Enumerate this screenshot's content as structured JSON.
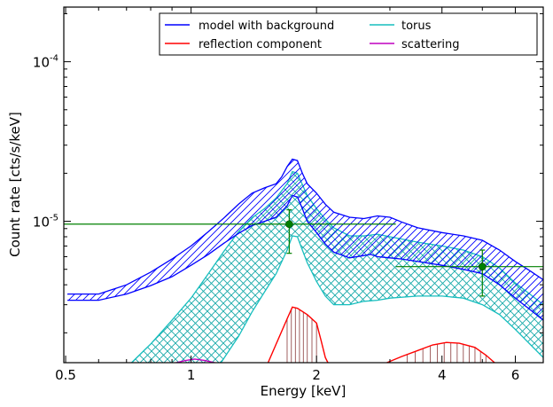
{
  "chart_data": {
    "type": "line",
    "xlabel": "Energy [keV]",
    "ylabel": "Count rate [cts/s/keV]",
    "xscale": "log",
    "yscale": "log",
    "xlim": [
      0.495,
      7.0
    ],
    "ylim": [
      1.3e-06,
      0.00022
    ],
    "xticks": [
      {
        "value": 0.5,
        "label": "0.5"
      },
      {
        "value": 1,
        "label": "1"
      },
      {
        "value": 2,
        "label": "2"
      },
      {
        "value": 4,
        "label": "4"
      },
      {
        "value": 6,
        "label": "6"
      }
    ],
    "yticks": [
      {
        "value": 1e-05,
        "base": "10",
        "exp": "-5"
      },
      {
        "value": 0.0001,
        "base": "10",
        "exp": "-4"
      }
    ],
    "legend": {
      "placement": "top-right",
      "entries": [
        {
          "key": "model",
          "label": "model with background",
          "color": "#0000ff"
        },
        {
          "key": "torus",
          "label": "torus",
          "color": "#17bebe"
        },
        {
          "key": "reflection",
          "label": "reflection component",
          "color": "#ff0000"
        },
        {
          "key": "scattering",
          "label": "scattering",
          "color": "#bf00bf"
        }
      ]
    },
    "series": [
      {
        "key": "model",
        "color": "#0000ff",
        "hatch": "diagonal",
        "upper": [
          [
            0.505,
            3.5e-06
          ],
          [
            0.6,
            3.5e-06
          ],
          [
            0.7,
            4e-06
          ],
          [
            0.8,
            4.8e-06
          ],
          [
            0.9,
            5.8e-06
          ],
          [
            1.0,
            7e-06
          ],
          [
            1.1,
            8.6e-06
          ],
          [
            1.2,
            1.05e-05
          ],
          [
            1.3,
            1.28e-05
          ],
          [
            1.4,
            1.5e-05
          ],
          [
            1.5,
            1.62e-05
          ],
          [
            1.6,
            1.72e-05
          ],
          [
            1.65,
            1.9e-05
          ],
          [
            1.7,
            2.2e-05
          ],
          [
            1.75,
            2.45e-05
          ],
          [
            1.8,
            2.4e-05
          ],
          [
            1.85,
            2e-05
          ],
          [
            1.9,
            1.72e-05
          ],
          [
            2.0,
            1.5e-05
          ],
          [
            2.1,
            1.28e-05
          ],
          [
            2.2,
            1.14e-05
          ],
          [
            2.4,
            1.06e-05
          ],
          [
            2.6,
            1.04e-05
          ],
          [
            2.8,
            1.08e-05
          ],
          [
            3.0,
            1.06e-05
          ],
          [
            3.2,
            9.9e-06
          ],
          [
            3.5,
            9.1e-06
          ],
          [
            4.0,
            8.5e-06
          ],
          [
            4.5,
            8.1e-06
          ],
          [
            5.0,
            7.6e-06
          ],
          [
            5.5,
            6.6e-06
          ],
          [
            6.0,
            5.6e-06
          ],
          [
            6.5,
            4.9e-06
          ],
          [
            7.0,
            4.3e-06
          ]
        ],
        "lower": [
          [
            0.505,
            3.2e-06
          ],
          [
            0.6,
            3.2e-06
          ],
          [
            0.7,
            3.5e-06
          ],
          [
            0.8,
            3.95e-06
          ],
          [
            0.9,
            4.5e-06
          ],
          [
            1.0,
            5.3e-06
          ],
          [
            1.1,
            6.2e-06
          ],
          [
            1.2,
            7.3e-06
          ],
          [
            1.3,
            8.4e-06
          ],
          [
            1.4,
            9.4e-06
          ],
          [
            1.5,
            1e-05
          ],
          [
            1.6,
            1.06e-05
          ],
          [
            1.7,
            1.25e-05
          ],
          [
            1.75,
            1.45e-05
          ],
          [
            1.8,
            1.42e-05
          ],
          [
            1.85,
            1.2e-05
          ],
          [
            1.9,
            1e-05
          ],
          [
            2.0,
            8.5e-06
          ],
          [
            2.1,
            7.2e-06
          ],
          [
            2.2,
            6.4e-06
          ],
          [
            2.4,
            5.9e-06
          ],
          [
            2.6,
            6.1e-06
          ],
          [
            2.7,
            6.2e-06
          ],
          [
            2.8,
            6e-06
          ],
          [
            3.0,
            5.9e-06
          ],
          [
            3.2,
            5.8e-06
          ],
          [
            3.5,
            5.6e-06
          ],
          [
            4.0,
            5.3e-06
          ],
          [
            4.5,
            5e-06
          ],
          [
            5.0,
            4.7e-06
          ],
          [
            5.5,
            4e-06
          ],
          [
            6.0,
            3.3e-06
          ],
          [
            6.5,
            2.8e-06
          ],
          [
            7.0,
            2.4e-06
          ]
        ]
      },
      {
        "key": "torus",
        "color": "#17bebe",
        "hatch": "cross",
        "upper": [
          [
            0.72,
            1.3e-06
          ],
          [
            0.8,
            1.7e-06
          ],
          [
            0.9,
            2.4e-06
          ],
          [
            1.0,
            3.3e-06
          ],
          [
            1.1,
            4.7e-06
          ],
          [
            1.2,
            6.5e-06
          ],
          [
            1.3,
            8.6e-06
          ],
          [
            1.4,
            1.05e-05
          ],
          [
            1.5,
            1.2e-05
          ],
          [
            1.6,
            1.4e-05
          ],
          [
            1.7,
            1.72e-05
          ],
          [
            1.75,
            2.05e-05
          ],
          [
            1.8,
            2e-05
          ],
          [
            1.85,
            1.7e-05
          ],
          [
            1.9,
            1.45e-05
          ],
          [
            2.0,
            1.2e-05
          ],
          [
            2.1,
            1.03e-05
          ],
          [
            2.2,
            9.1e-06
          ],
          [
            2.4,
            8.1e-06
          ],
          [
            2.6,
            8.1e-06
          ],
          [
            2.8,
            8.3e-06
          ],
          [
            3.0,
            8e-06
          ],
          [
            3.5,
            7.4e-06
          ],
          [
            4.0,
            7e-06
          ],
          [
            4.5,
            6.6e-06
          ],
          [
            5.0,
            6e-06
          ],
          [
            5.5,
            5.1e-06
          ],
          [
            6.0,
            4.1e-06
          ],
          [
            6.5,
            3.5e-06
          ],
          [
            7.0,
            3e-06
          ]
        ],
        "lower": [
          [
            1.18,
            1.3e-06
          ],
          [
            1.3,
            1.9e-06
          ],
          [
            1.4,
            2.7e-06
          ],
          [
            1.5,
            3.6e-06
          ],
          [
            1.6,
            4.7e-06
          ],
          [
            1.7,
            6.6e-06
          ],
          [
            1.75,
            8.1e-06
          ],
          [
            1.8,
            8e-06
          ],
          [
            1.85,
            6.6e-06
          ],
          [
            1.9,
            5.5e-06
          ],
          [
            2.0,
            4.2e-06
          ],
          [
            2.1,
            3.4e-06
          ],
          [
            2.2,
            3e-06
          ],
          [
            2.4,
            3e-06
          ],
          [
            2.6,
            3.15e-06
          ],
          [
            2.8,
            3.2e-06
          ],
          [
            3.0,
            3.3e-06
          ],
          [
            3.5,
            3.4e-06
          ],
          [
            4.0,
            3.4e-06
          ],
          [
            4.5,
            3.3e-06
          ],
          [
            5.0,
            3e-06
          ],
          [
            5.5,
            2.6e-06
          ],
          [
            6.0,
            2.1e-06
          ],
          [
            6.5,
            1.7e-06
          ],
          [
            7.0,
            1.4e-06
          ]
        ]
      }
    ],
    "lines": [
      {
        "key": "reflection",
        "color": "#ff0000",
        "points": [
          [
            1.53,
            1.3e-06
          ],
          [
            1.6,
            1.7e-06
          ],
          [
            1.7,
            2.45e-06
          ],
          [
            1.75,
            2.9e-06
          ],
          [
            1.8,
            2.85e-06
          ],
          [
            1.9,
            2.6e-06
          ],
          [
            2.0,
            2.3e-06
          ],
          [
            2.05,
            1.8e-06
          ],
          [
            2.1,
            1.4e-06
          ],
          [
            2.13,
            1.3e-06
          ]
        ]
      },
      {
        "key": "reflection",
        "color": "#ff0000",
        "points": [
          [
            2.95,
            1.3e-06
          ],
          [
            3.2,
            1.42e-06
          ],
          [
            3.5,
            1.55e-06
          ],
          [
            3.8,
            1.68e-06
          ],
          [
            4.1,
            1.74e-06
          ],
          [
            4.4,
            1.72e-06
          ],
          [
            4.8,
            1.62e-06
          ],
          [
            5.1,
            1.45e-06
          ],
          [
            5.35,
            1.3e-06
          ]
        ]
      },
      {
        "key": "scattering",
        "color": "#bf00bf",
        "points": [
          [
            0.92,
            1.3e-06
          ],
          [
            0.97,
            1.34e-06
          ],
          [
            1.02,
            1.37e-06
          ],
          [
            1.08,
            1.34e-06
          ],
          [
            1.14,
            1.3e-06
          ]
        ]
      }
    ],
    "reflection_stems": {
      "color": "#a06060",
      "x": [
        1.7,
        1.74,
        1.78,
        1.82,
        1.86,
        1.9,
        1.95,
        2.0,
        3.3,
        3.45,
        3.6,
        3.75,
        3.9,
        4.05,
        4.2,
        4.35,
        4.5,
        4.65,
        4.8,
        4.95,
        5.1
      ]
    },
    "data_points": {
      "color": "#008000",
      "points": [
        {
          "x": 1.72,
          "y": 9.6e-06,
          "xerr": [
            0.495,
            3.1
          ],
          "yerr": [
            6.3e-06,
            1.18e-05
          ]
        },
        {
          "x": 5.0,
          "y": 5.2e-06,
          "xerr": [
            3.1,
            7.0
          ],
          "yerr": [
            3.4e-06,
            6.6e-06
          ]
        }
      ]
    }
  }
}
